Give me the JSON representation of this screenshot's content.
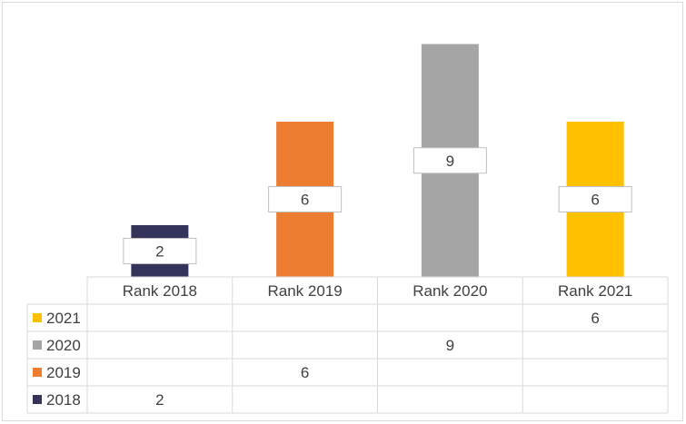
{
  "chart_data": {
    "type": "bar",
    "categories": [
      "Rank 2018",
      "Rank 2019",
      "Rank 2020",
      "Rank 2021"
    ],
    "series": [
      {
        "name": "2018",
        "color": "#34345a",
        "values": [
          2,
          null,
          null,
          null
        ]
      },
      {
        "name": "2019",
        "color": "#ed7d31",
        "values": [
          null,
          6,
          null,
          null
        ]
      },
      {
        "name": "2020",
        "color": "#a5a5a5",
        "values": [
          null,
          null,
          9,
          null
        ]
      },
      {
        "name": "2021",
        "color": "#ffc000",
        "values": [
          null,
          null,
          null,
          6
        ]
      }
    ],
    "ylim": [
      0,
      10
    ],
    "grid": false,
    "legend": "data-table",
    "data_table_order": [
      "2021",
      "2020",
      "2019",
      "2018"
    ]
  }
}
